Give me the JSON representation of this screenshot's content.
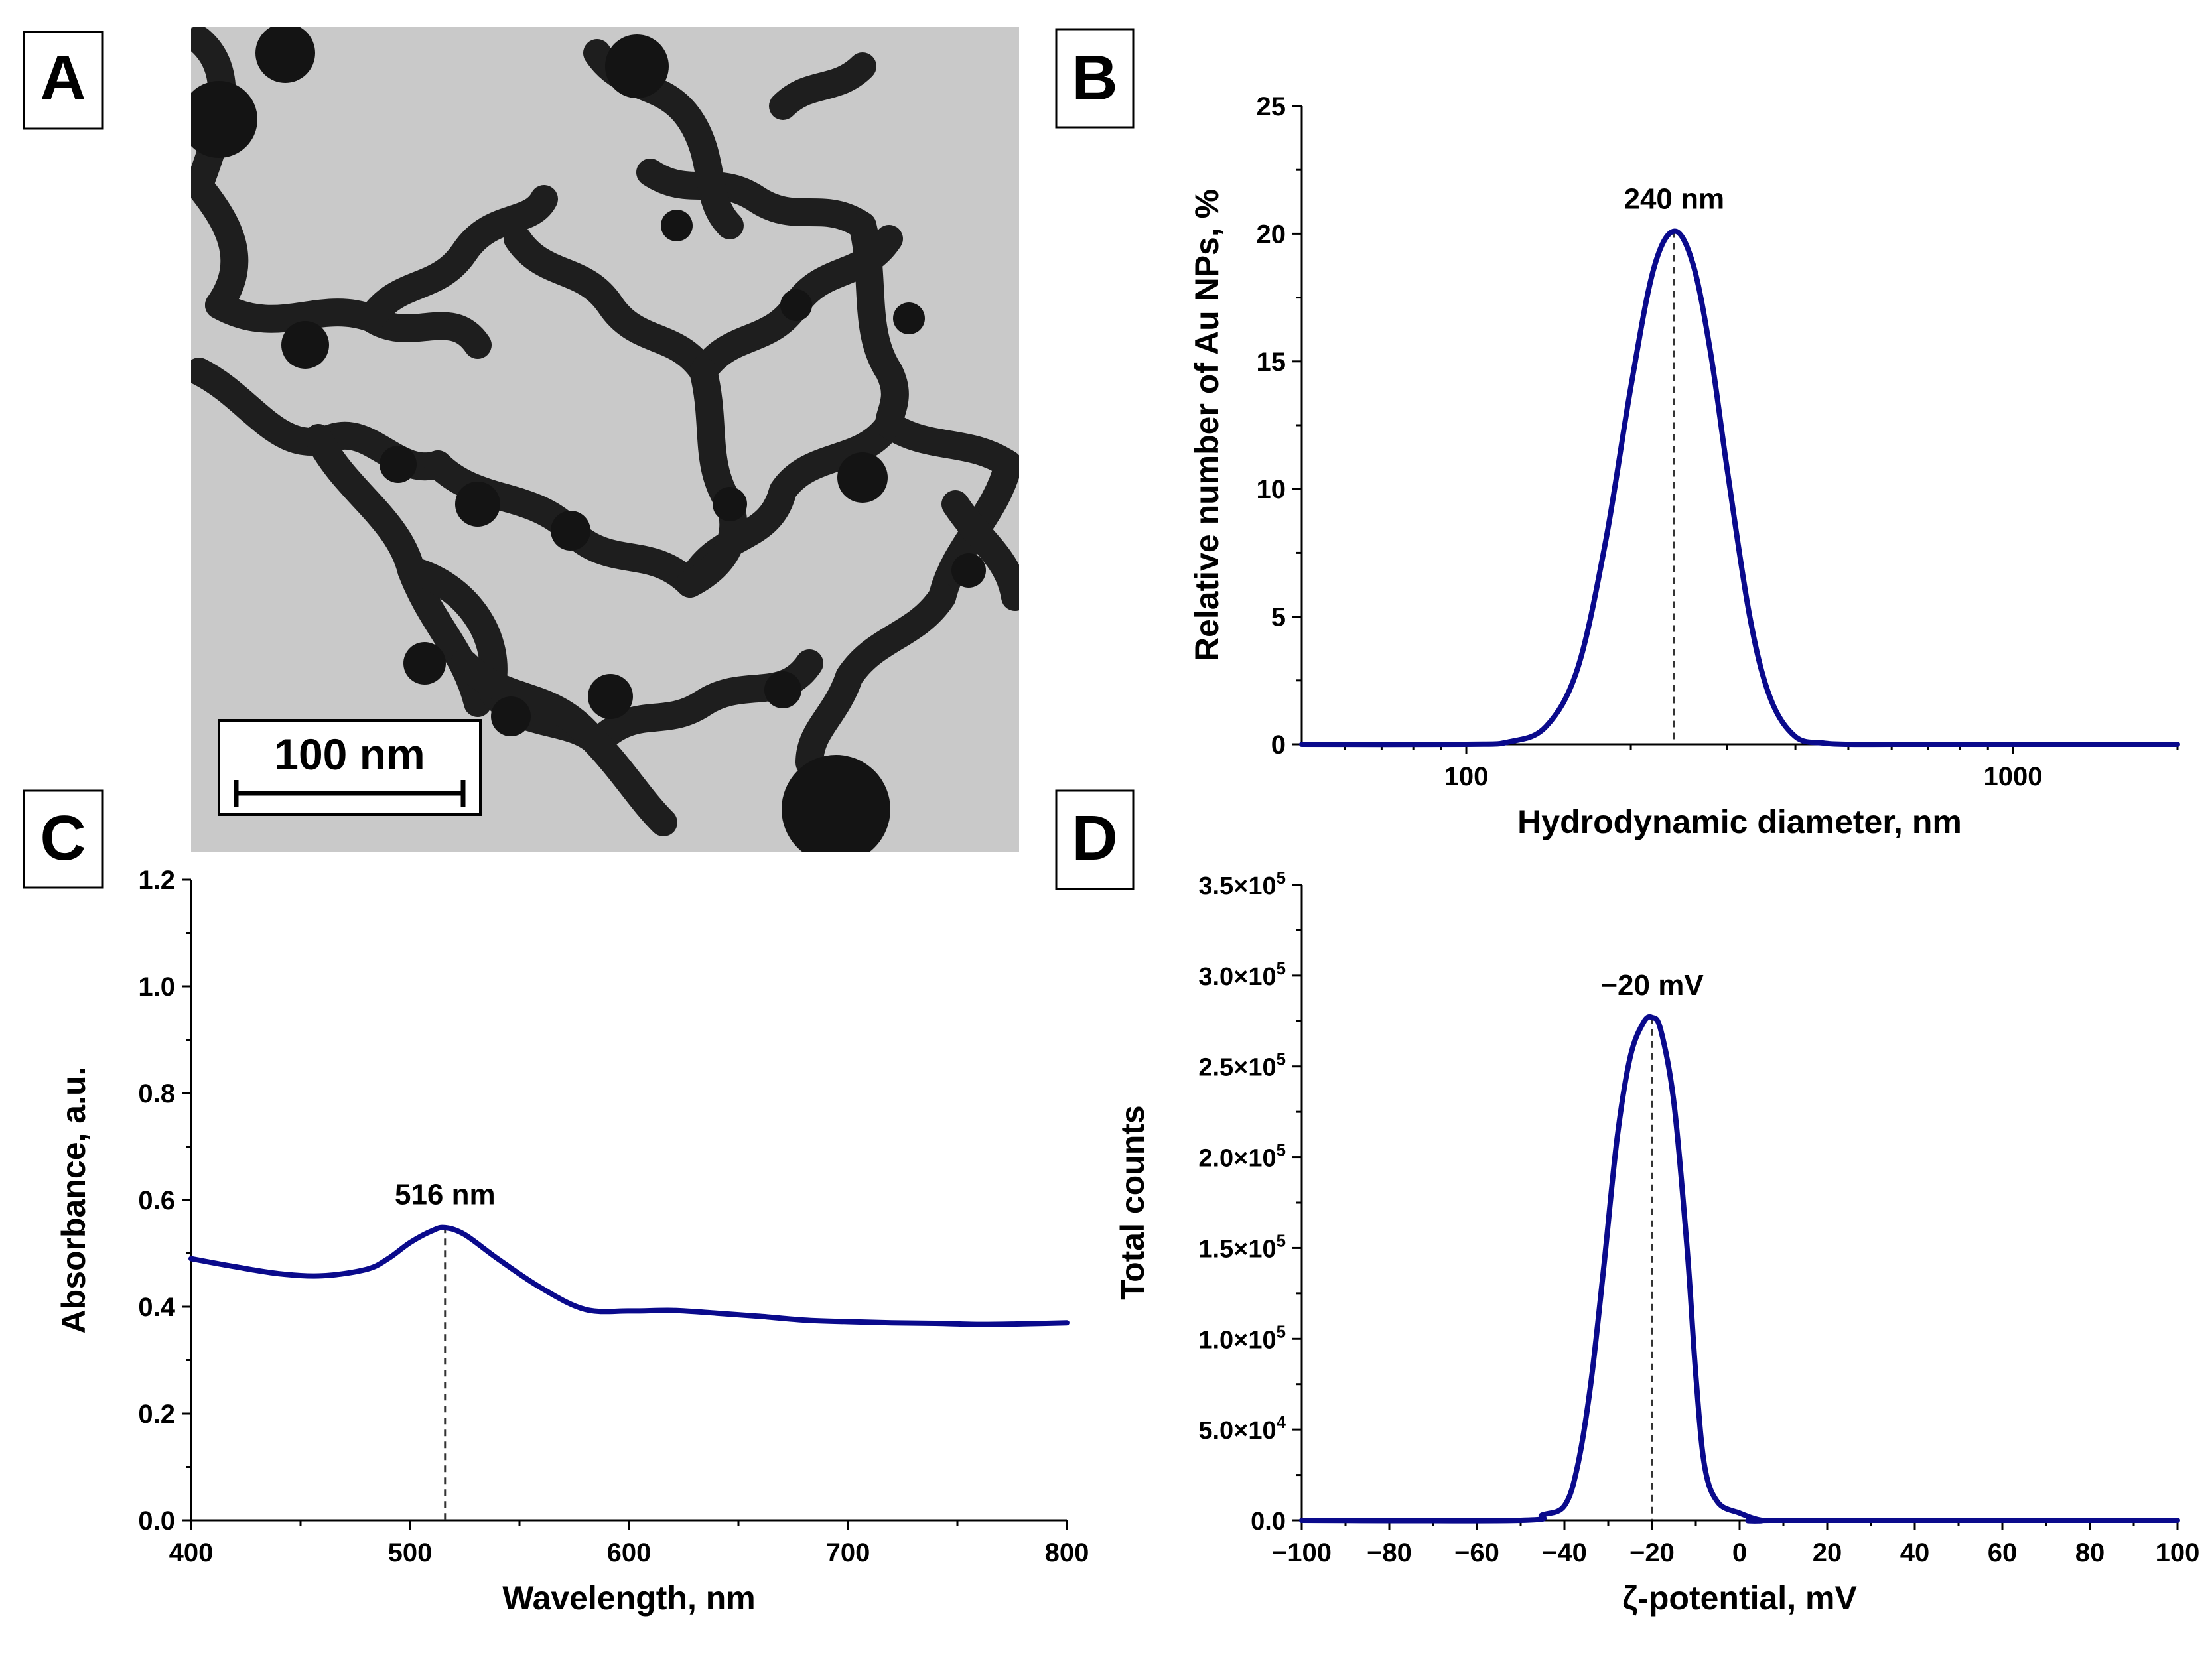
{
  "panels": {
    "a": {
      "label": "A",
      "scale_bar": "100 nm"
    },
    "b": {
      "label": "B"
    },
    "c": {
      "label": "C"
    },
    "d": {
      "label": "D"
    }
  },
  "colors": {
    "curve": "#0a0a8c",
    "axis": "#000000",
    "micrograph_bg": "#c9c9c9",
    "particle": "#1e1e1e"
  },
  "chart_data": [
    {
      "id": "b",
      "type": "line",
      "title": "",
      "xlabel": "Hydrodynamic diameter, nm",
      "ylabel": "Relative number of Au NPs, %",
      "xscale": "log",
      "xlim": [
        50,
        2000
      ],
      "ylim": [
        0,
        25
      ],
      "xticks": [
        100,
        1000
      ],
      "xtick_labels": [
        "100",
        "1000"
      ],
      "yticks": [
        0,
        5,
        10,
        15,
        20,
        25
      ],
      "ytick_labels": [
        "0",
        "5",
        "10",
        "15",
        "20",
        "25"
      ],
      "annotation": {
        "text": "240 nm",
        "x": 240,
        "y": 20.1
      },
      "peak": {
        "x": 240,
        "y": 20.1
      },
      "series": [
        {
          "name": "Au NPs",
          "x": [
            50,
            100,
            120,
            140,
            160,
            180,
            200,
            220,
            240,
            260,
            280,
            300,
            330,
            360,
            400,
            450,
            500,
            600,
            800,
            1000,
            2000
          ],
          "y": [
            0,
            0,
            0.1,
            0.7,
            3.0,
            8.0,
            14.0,
            18.6,
            20.1,
            18.8,
            15.3,
            10.8,
            5.0,
            1.8,
            0.3,
            0.05,
            0,
            0,
            0,
            0,
            0
          ]
        }
      ]
    },
    {
      "id": "c",
      "type": "line",
      "title": "",
      "xlabel": "Wavelength, nm",
      "ylabel": "Absorbance, a.u.",
      "xlim": [
        400,
        800
      ],
      "ylim": [
        0,
        1.2
      ],
      "xticks": [
        400,
        500,
        600,
        700,
        800
      ],
      "xtick_labels": [
        "400",
        "500",
        "600",
        "700",
        "800"
      ],
      "yticks": [
        0,
        0.2,
        0.4,
        0.6,
        0.8,
        1.0,
        1.2
      ],
      "ytick_labels": [
        "0.0",
        "0.2",
        "0.4",
        "0.6",
        "0.8",
        "1.0",
        "1.2"
      ],
      "annotation": {
        "text": "516 nm",
        "x": 516,
        "y": 0.55
      },
      "peak": {
        "x": 516,
        "y": 0.55
      },
      "series": [
        {
          "name": "Absorbance",
          "x": [
            400,
            420,
            440,
            460,
            480,
            490,
            500,
            510,
            516,
            525,
            540,
            560,
            580,
            600,
            620,
            640,
            660,
            680,
            700,
            720,
            740,
            760,
            780,
            800
          ],
          "y": [
            0.49,
            0.475,
            0.462,
            0.458,
            0.47,
            0.49,
            0.52,
            0.542,
            0.548,
            0.535,
            0.49,
            0.435,
            0.395,
            0.392,
            0.393,
            0.388,
            0.382,
            0.375,
            0.372,
            0.37,
            0.369,
            0.367,
            0.368,
            0.37
          ]
        }
      ]
    },
    {
      "id": "d",
      "type": "line",
      "title": "",
      "xlabel": "ζ-potential, mV",
      "ylabel": "Total counts",
      "xlim": [
        -100,
        100
      ],
      "ylim": [
        0,
        350000
      ],
      "xticks": [
        -100,
        -80,
        -60,
        -40,
        -20,
        0,
        20,
        40,
        60,
        80,
        100
      ],
      "xtick_labels": [
        "−100",
        "−80",
        "−60",
        "−40",
        "−20",
        "0",
        "20",
        "40",
        "60",
        "80",
        "100"
      ],
      "yticks": [
        0,
        50000,
        100000,
        150000,
        200000,
        250000,
        300000,
        350000
      ],
      "ytick_labels": [
        {
          "base": "0.0",
          "exp": ""
        },
        {
          "base": "5.0×10",
          "exp": "4"
        },
        {
          "base": "1.0×10",
          "exp": "5"
        },
        {
          "base": "1.5×10",
          "exp": "5"
        },
        {
          "base": "2.0×10",
          "exp": "5"
        },
        {
          "base": "2.5×10",
          "exp": "5"
        },
        {
          "base": "3.0×10",
          "exp": "5"
        },
        {
          "base": "3.5×10",
          "exp": "5"
        }
      ],
      "annotation": {
        "text": "−20 mV",
        "x": -20,
        "y": 277000
      },
      "peak": {
        "x": -20,
        "y": 277000
      },
      "series": [
        {
          "name": "Zeta potential",
          "x": [
            -100,
            -50,
            -45,
            -40,
            -37,
            -34,
            -31,
            -28,
            -25,
            -22,
            -20,
            -18,
            -15,
            -12,
            -10,
            -8,
            -5,
            0,
            5,
            10,
            100
          ],
          "y": [
            0,
            0,
            3000,
            8000,
            30000,
            75000,
            140000,
            210000,
            255000,
            274000,
            277000,
            270000,
            230000,
            150000,
            80000,
            30000,
            10000,
            4000,
            0,
            0,
            0
          ]
        }
      ]
    }
  ]
}
